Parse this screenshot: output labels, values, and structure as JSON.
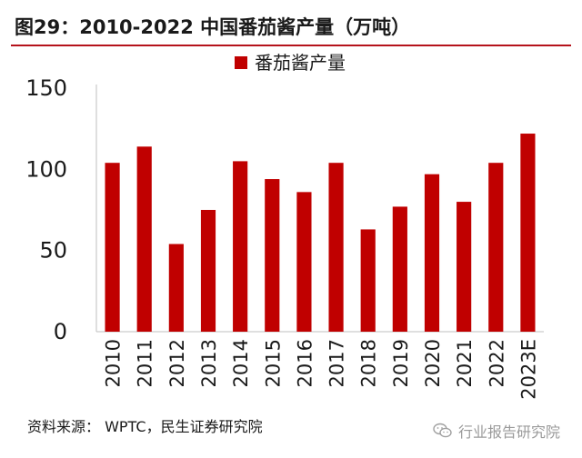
{
  "header": {
    "title": "图29：2010-2022 中国番茄酱产量（万吨）"
  },
  "footer": {
    "source": "资料来源：   WPTC，民生证券研究院"
  },
  "watermark": {
    "text": "行业报告研究院",
    "icon": "wechat-icon"
  },
  "colors": {
    "bar": "#c00000",
    "title_rule": "#b5121b",
    "axis": "#bfbfbf"
  },
  "chart_data": {
    "type": "bar",
    "title": "",
    "xlabel": "",
    "ylabel": "",
    "categories": [
      "2010",
      "2011",
      "2012",
      "2013",
      "2014",
      "2015",
      "2016",
      "2017",
      "2018",
      "2019",
      "2020",
      "2021",
      "2022",
      "2023E"
    ],
    "series": [
      {
        "name": "番茄酱产量",
        "values": [
          104,
          114,
          54,
          75,
          105,
          94,
          86,
          104,
          63,
          77,
          97,
          80,
          104,
          122
        ]
      }
    ],
    "ylim": [
      0,
      150
    ],
    "yticks": [
      "0",
      "50",
      "100",
      "150"
    ],
    "grid": false,
    "legend": "top-center",
    "xtick_rotation": "vertical"
  }
}
